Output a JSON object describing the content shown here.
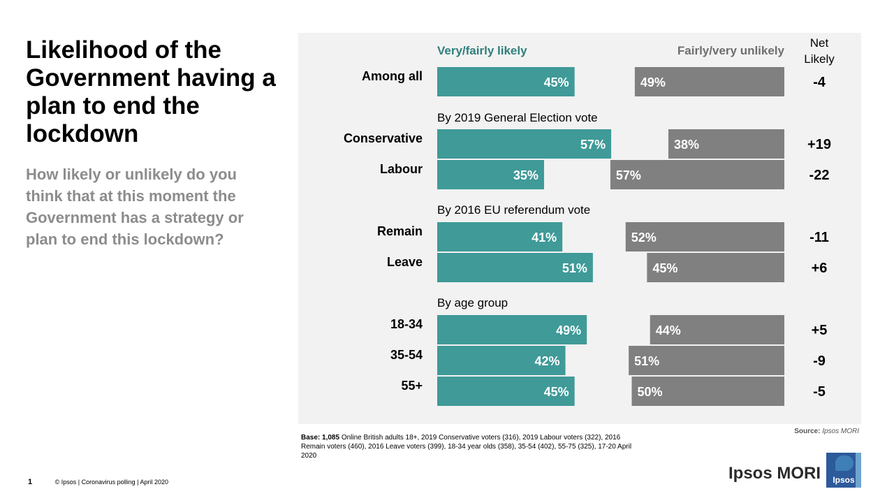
{
  "title": "Likelihood of the Government having a plan to end the lockdown",
  "question": "How likely or unlikely do you think that at this moment the Government has a strategy or plan to end this lockdown?",
  "chart_data": {
    "type": "bar",
    "orientation": "horizontal-diverging",
    "legend": {
      "likely": "Very/fairly likely",
      "unlikely": "Fairly/very unlikely",
      "net": [
        "Net",
        "Likely"
      ]
    },
    "colors": {
      "likely": "#3f9a98",
      "unlikely": "#808080",
      "panel": "#f2f2f2"
    },
    "groups": [
      {
        "heading": "",
        "rows": [
          {
            "label": "Among all",
            "likely": 45,
            "unlikely": 49,
            "net": "-4"
          }
        ]
      },
      {
        "heading": "By 2019 General Election vote",
        "rows": [
          {
            "label": "Conservative",
            "likely": 57,
            "unlikely": 38,
            "net": "+19"
          },
          {
            "label": "Labour",
            "likely": 35,
            "unlikely": 57,
            "net": "-22"
          }
        ]
      },
      {
        "heading": "By 2016 EU referendum vote",
        "rows": [
          {
            "label": "Remain",
            "likely": 41,
            "unlikely": 52,
            "net": "-11"
          },
          {
            "label": "Leave",
            "likely": 51,
            "unlikely": 45,
            "net": "+6"
          }
        ]
      },
      {
        "heading": "By age group",
        "rows": [
          {
            "label": "18-34",
            "likely": 49,
            "unlikely": 44,
            "net": "+5"
          },
          {
            "label": "35-54",
            "likely": 42,
            "unlikely": 51,
            "net": "-9"
          },
          {
            "label": "55+",
            "likely": 45,
            "unlikely": 50,
            "net": "-5"
          }
        ]
      }
    ]
  },
  "source": {
    "label": "Source:",
    "value": "Ipsos MORI"
  },
  "base": {
    "label": "Base: 1,085",
    "text": " Online British adults 18+,  2019 Conservative voters (316), 2019 Labour voters (322), 2016 Remain  voters (460), 2016 Leave voters (399), 18-34 year olds (358), 35-54 (402), 55-75 (325), 17-20 April 2020"
  },
  "footer": {
    "page": "1",
    "text": "© Ipsos | Coronavirus polling  |  April 2020"
  },
  "brand": {
    "name": "Ipsos MORI",
    "logo_label": "Ipsos"
  }
}
